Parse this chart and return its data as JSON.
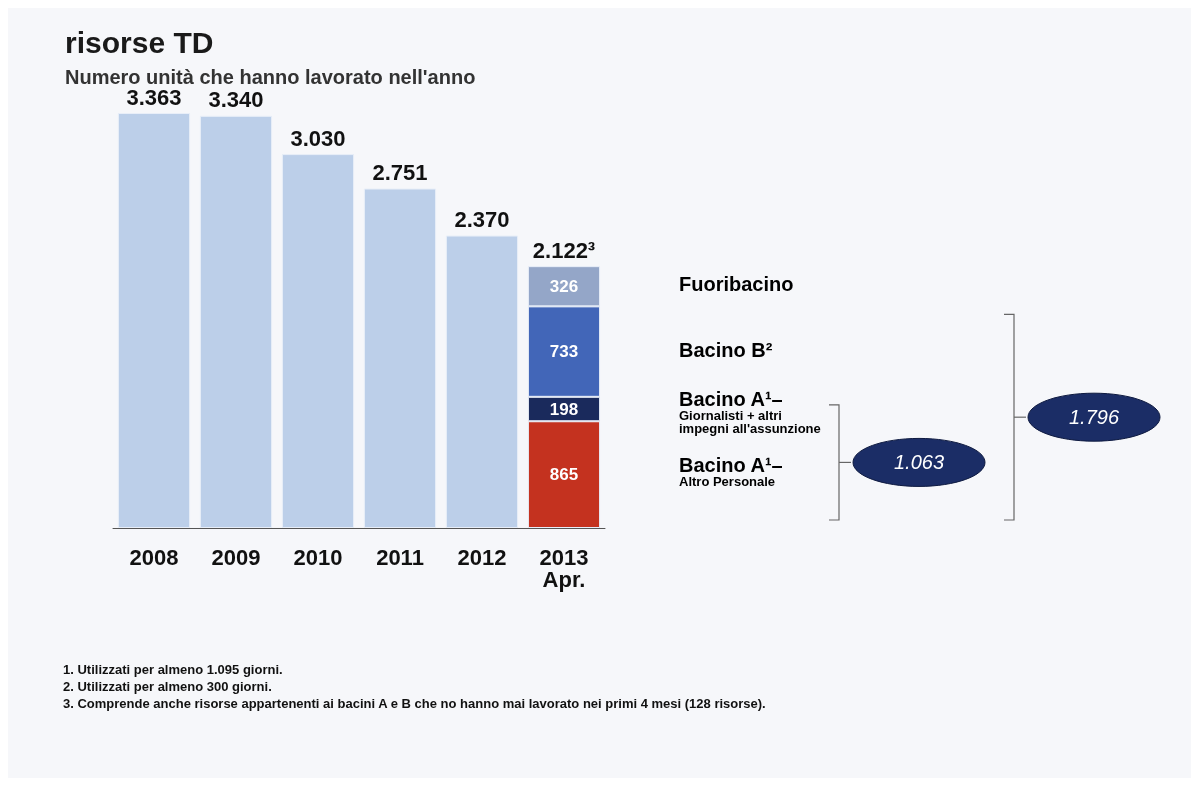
{
  "chart_data": {
    "type": "bar",
    "stacked": true,
    "title": "risorse TD",
    "subtitle": "Numero unità che hanno lavorato nell'anno",
    "categories": [
      "2008",
      "2009",
      "2010",
      "2011",
      "2012",
      "2013\nApr."
    ],
    "series": [
      {
        "color": "#bccfe9",
        "values": [
          3363,
          3340,
          3030,
          2751,
          2370,
          null
        ],
        "value_labels": [
          "3.363",
          "3.340",
          "3.030",
          "2.751",
          "2.370",
          null
        ]
      },
      {
        "name": "Bacino A¹–\nAltro Personale",
        "color": "#c4321f",
        "values": [
          null,
          null,
          null,
          null,
          null,
          865
        ],
        "value_labels": [
          null,
          null,
          null,
          null,
          null,
          "865"
        ]
      },
      {
        "name": "Bacino A¹–\nGiornalisti + altri\nimpegni all'assunzione",
        "color": "#1a2a5c",
        "values": [
          null,
          null,
          null,
          null,
          null,
          198
        ],
        "value_labels": [
          null,
          null,
          null,
          null,
          null,
          "198"
        ]
      },
      {
        "name": "Bacino B²",
        "color": "#4266b8",
        "values": [
          null,
          null,
          null,
          null,
          null,
          733
        ],
        "value_labels": [
          null,
          null,
          null,
          null,
          null,
          "733"
        ]
      },
      {
        "name": "Fuoribacino",
        "color": "#94a6c8",
        "values": [
          null,
          null,
          null,
          null,
          null,
          326
        ],
        "value_labels": [
          null,
          null,
          null,
          null,
          null,
          "326"
        ]
      }
    ],
    "totals": [
      null,
      null,
      null,
      null,
      null,
      "2.122³"
    ],
    "annotations": [
      "1.063",
      "1.796",
      "1. Utilizzati per almeno 1.095 giorni.",
      "2. Utilizzati per almeno 300 giorni.",
      "3. Comprende anche risorse appartenenti ai bacini A e B che no hanno mai lavorato nei primi 4 mesi (128 risorse)."
    ],
    "legend": false
  }
}
